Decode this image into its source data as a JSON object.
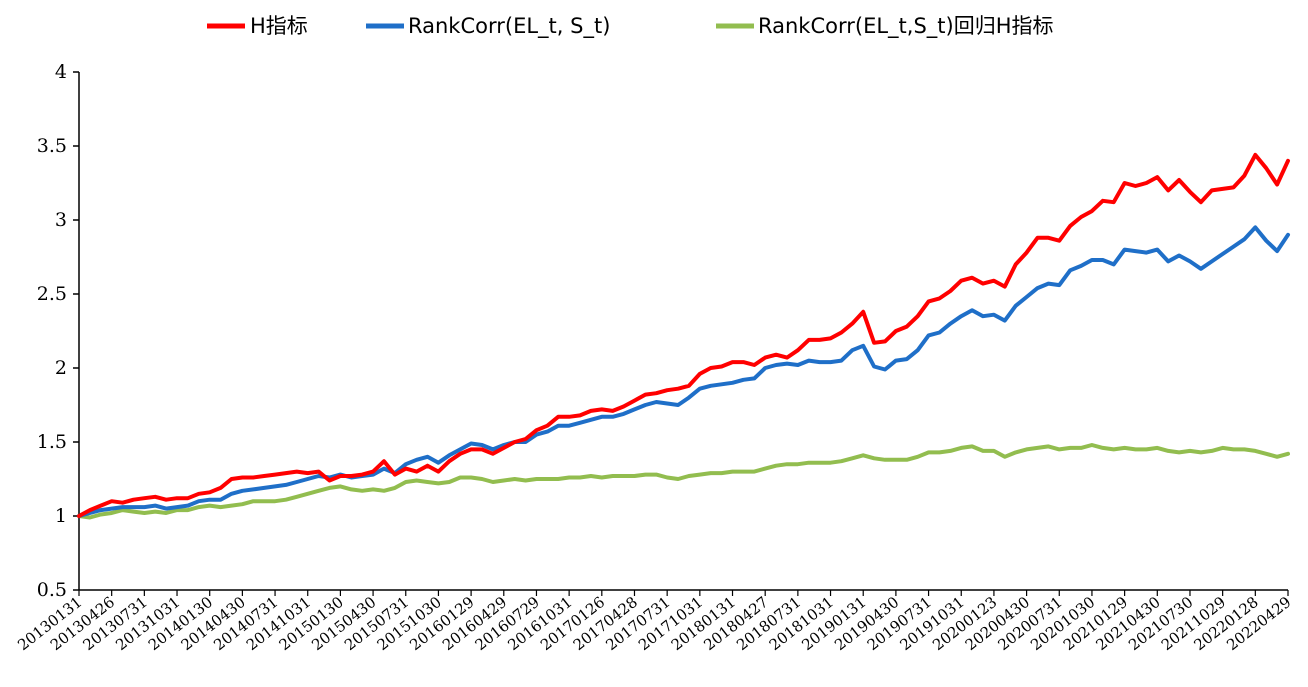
{
  "chart_data": {
    "type": "line",
    "title": "",
    "xlabel": "",
    "ylabel": "",
    "ylim": [
      0.5,
      4
    ],
    "yticks": [
      "0.5",
      "1",
      "1.5",
      "2",
      "2.5",
      "3",
      "3.5",
      "4"
    ],
    "grid": false,
    "legend_position": "top-center",
    "x_tick_labels": [
      "20130131",
      "20130426",
      "20130731",
      "20131031",
      "20140130",
      "20140430",
      "20140731",
      "20141031",
      "20150130",
      "20150430",
      "20150731",
      "20151030",
      "20160129",
      "20160429",
      "20160729",
      "20161031",
      "20170126",
      "20170428",
      "20170731",
      "20171031",
      "20180131",
      "20180427",
      "20180731",
      "20181031",
      "20190131",
      "20190430",
      "20190731",
      "20191031",
      "20200123",
      "20200430",
      "20200731",
      "20201030",
      "20210129",
      "20210430",
      "20210730",
      "20211029",
      "20220128",
      "20220429"
    ],
    "series": [
      {
        "name": "H指标",
        "color": "#ff0000",
        "values": [
          1.0,
          1.04,
          1.07,
          1.1,
          1.09,
          1.11,
          1.12,
          1.13,
          1.11,
          1.12,
          1.12,
          1.15,
          1.16,
          1.19,
          1.25,
          1.26,
          1.26,
          1.27,
          1.28,
          1.29,
          1.3,
          1.29,
          1.3,
          1.24,
          1.27,
          1.27,
          1.28,
          1.3,
          1.37,
          1.28,
          1.32,
          1.3,
          1.34,
          1.3,
          1.37,
          1.42,
          1.45,
          1.45,
          1.42,
          1.46,
          1.5,
          1.52,
          1.58,
          1.61,
          1.67,
          1.67,
          1.68,
          1.71,
          1.72,
          1.71,
          1.74,
          1.78,
          1.82,
          1.83,
          1.85,
          1.86,
          1.88,
          1.96,
          2.0,
          2.01,
          2.04,
          2.04,
          2.02,
          2.07,
          2.09,
          2.07,
          2.12,
          2.19,
          2.19,
          2.2,
          2.24,
          2.3,
          2.38,
          2.17,
          2.18,
          2.25,
          2.28,
          2.35,
          2.45,
          2.47,
          2.52,
          2.59,
          2.61,
          2.57,
          2.59,
          2.55,
          2.7,
          2.78,
          2.88,
          2.88,
          2.86,
          2.96,
          3.02,
          3.06,
          3.13,
          3.12,
          3.25,
          3.23,
          3.25,
          3.29,
          3.2,
          3.27,
          3.19,
          3.12,
          3.2,
          3.21,
          3.22,
          3.3,
          3.44,
          3.35,
          3.24,
          3.4
        ]
      },
      {
        "name": "RankCorr(EL_t, S_t)",
        "color": "#1f6fc8",
        "values": [
          1.0,
          1.02,
          1.04,
          1.05,
          1.06,
          1.06,
          1.06,
          1.07,
          1.05,
          1.06,
          1.07,
          1.1,
          1.11,
          1.11,
          1.15,
          1.17,
          1.18,
          1.19,
          1.2,
          1.21,
          1.23,
          1.25,
          1.27,
          1.26,
          1.28,
          1.26,
          1.27,
          1.28,
          1.32,
          1.29,
          1.35,
          1.38,
          1.4,
          1.36,
          1.41,
          1.45,
          1.49,
          1.48,
          1.45,
          1.48,
          1.5,
          1.5,
          1.55,
          1.57,
          1.61,
          1.61,
          1.63,
          1.65,
          1.67,
          1.67,
          1.69,
          1.72,
          1.75,
          1.77,
          1.76,
          1.75,
          1.8,
          1.86,
          1.88,
          1.89,
          1.9,
          1.92,
          1.93,
          2.0,
          2.02,
          2.03,
          2.02,
          2.05,
          2.04,
          2.04,
          2.05,
          2.12,
          2.15,
          2.01,
          1.99,
          2.05,
          2.06,
          2.12,
          2.22,
          2.24,
          2.3,
          2.35,
          2.39,
          2.35,
          2.36,
          2.32,
          2.42,
          2.48,
          2.54,
          2.57,
          2.56,
          2.66,
          2.69,
          2.73,
          2.73,
          2.7,
          2.8,
          2.79,
          2.78,
          2.8,
          2.72,
          2.76,
          2.72,
          2.67,
          2.72,
          2.77,
          2.82,
          2.87,
          2.95,
          2.86,
          2.79,
          2.9
        ]
      },
      {
        "name": "RankCorr(EL_t,S_t)回归H指标",
        "color": "#92bd4f",
        "values": [
          1.0,
          0.99,
          1.01,
          1.02,
          1.04,
          1.03,
          1.02,
          1.03,
          1.02,
          1.04,
          1.04,
          1.06,
          1.07,
          1.06,
          1.07,
          1.08,
          1.1,
          1.1,
          1.1,
          1.11,
          1.13,
          1.15,
          1.17,
          1.19,
          1.2,
          1.18,
          1.17,
          1.18,
          1.17,
          1.19,
          1.23,
          1.24,
          1.23,
          1.22,
          1.23,
          1.26,
          1.26,
          1.25,
          1.23,
          1.24,
          1.25,
          1.24,
          1.25,
          1.25,
          1.25,
          1.26,
          1.26,
          1.27,
          1.26,
          1.27,
          1.27,
          1.27,
          1.28,
          1.28,
          1.26,
          1.25,
          1.27,
          1.28,
          1.29,
          1.29,
          1.3,
          1.3,
          1.3,
          1.32,
          1.34,
          1.35,
          1.35,
          1.36,
          1.36,
          1.36,
          1.37,
          1.39,
          1.41,
          1.39,
          1.38,
          1.38,
          1.38,
          1.4,
          1.43,
          1.43,
          1.44,
          1.46,
          1.47,
          1.44,
          1.44,
          1.4,
          1.43,
          1.45,
          1.46,
          1.47,
          1.45,
          1.46,
          1.46,
          1.48,
          1.46,
          1.45,
          1.46,
          1.45,
          1.45,
          1.46,
          1.44,
          1.43,
          1.44,
          1.43,
          1.44,
          1.46,
          1.45,
          1.45,
          1.44,
          1.42,
          1.4,
          1.42
        ]
      }
    ]
  }
}
